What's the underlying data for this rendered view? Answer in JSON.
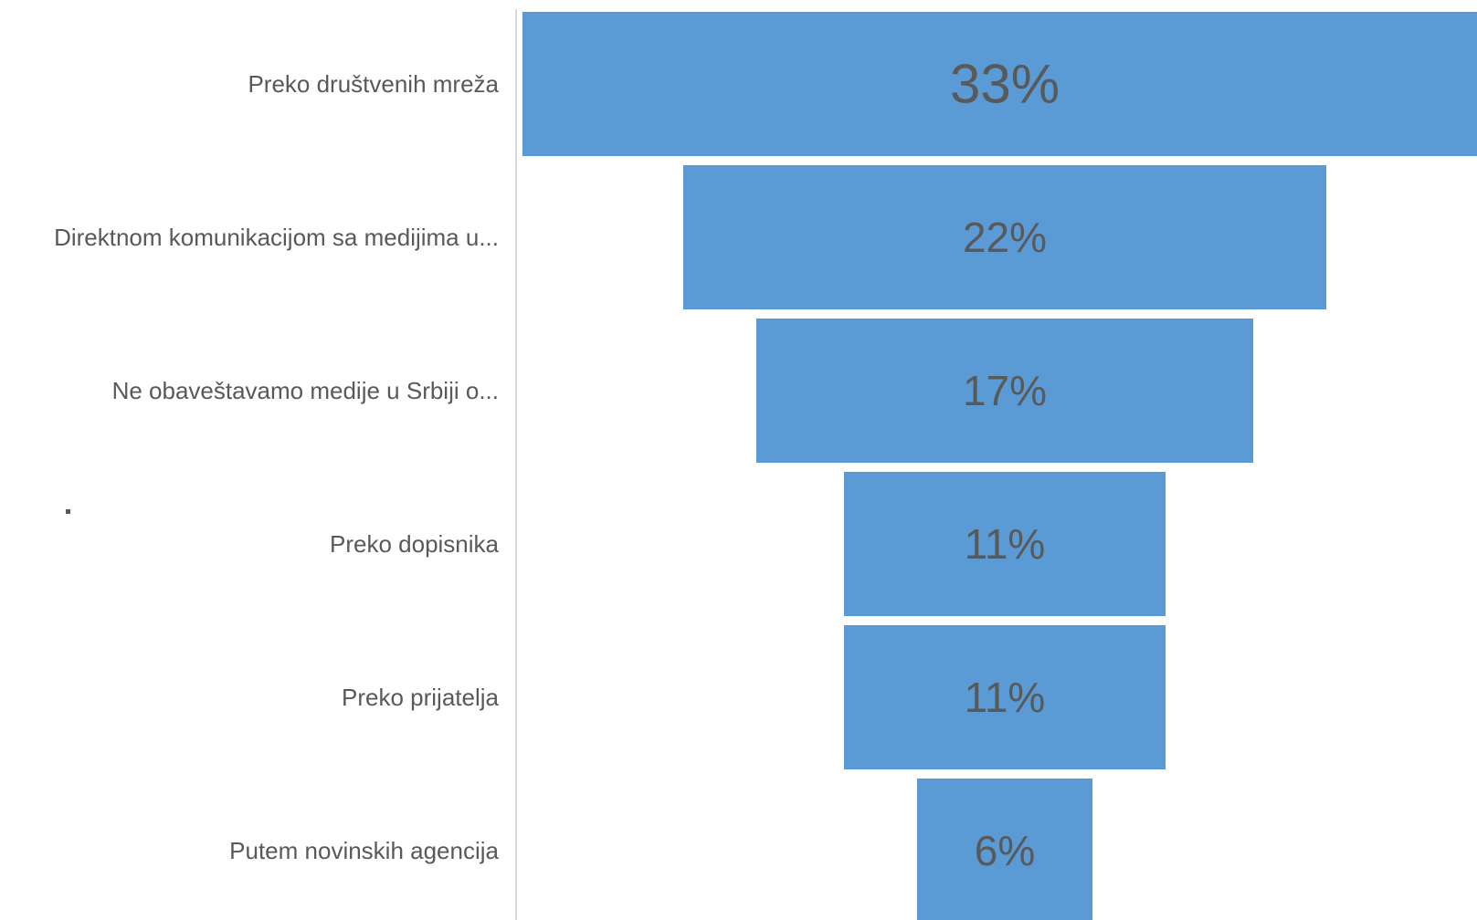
{
  "chart_data": {
    "type": "bar",
    "orientation": "horizontal",
    "style": "funnel",
    "categories": [
      "Preko društvenih mreža",
      "Direktnom komunikacijom sa medijima u...",
      "Ne obaveštavamo medije u Srbiji o...",
      "Preko dopisnika",
      "Preko prijatelja",
      "Putem novinskih agencija"
    ],
    "values": [
      33,
      22,
      17,
      11,
      11,
      6
    ],
    "value_labels": [
      "33%",
      "22%",
      "17%",
      "11%",
      "11%",
      "6%"
    ],
    "title": "",
    "xlabel": "",
    "ylabel": "",
    "grid": false,
    "legend": "none",
    "colors": {
      "bar": "#5b9bd5",
      "text": "#595959",
      "axis": "#d9d9d9"
    }
  }
}
